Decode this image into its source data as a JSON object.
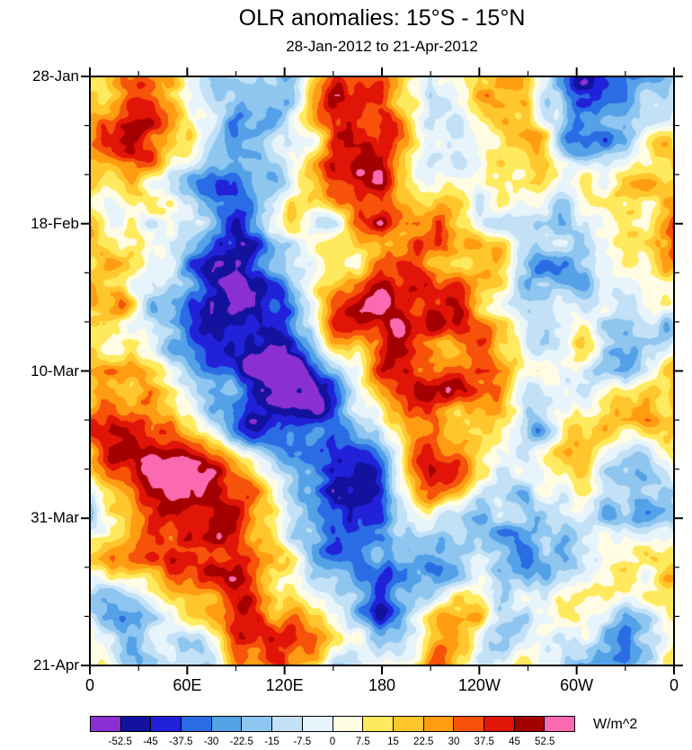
{
  "chart_data": {
    "type": "heatmap",
    "title": "OLR anomalies: 15°S - 15°N",
    "subtitle": "28-Jan-2012 to 21-Apr-2012",
    "units": "W/m^2",
    "x_axis": {
      "ticks": [
        "0",
        "60E",
        "120E",
        "180",
        "120W",
        "60W",
        "0"
      ],
      "range_deg": [
        0,
        360
      ],
      "major_tick_deg": 60,
      "minor_tick_deg": 30
    },
    "y_axis": {
      "ticks": [
        "28-Jan",
        "18-Feb",
        "10-Mar",
        "31-Mar",
        "21-Apr"
      ],
      "range_days": [
        0,
        84
      ],
      "major_tick_days": 21,
      "minor_tick_days": 7
    },
    "colorbar": {
      "levels": [
        -52.5,
        -45,
        -37.5,
        -30,
        -22.5,
        -15,
        -7.5,
        0,
        7.5,
        15,
        22.5,
        30,
        37.5,
        45,
        52.5
      ],
      "labels": [
        "-52.5",
        "-45",
        "-37.5",
        "-30",
        "-22.5",
        "-15",
        "-7.5",
        "0",
        "7.5",
        "15",
        "22.5",
        "30",
        "37.5",
        "45",
        "52.5"
      ],
      "colors": [
        "#8a2fd1",
        "#12129e",
        "#2121d9",
        "#2a6ce3",
        "#55a1e8",
        "#8fc6ef",
        "#c3e1f6",
        "#e8f4fb",
        "#fffce3",
        "#ffe95c",
        "#ffc62e",
        "#ff9c12",
        "#f6520a",
        "#e01507",
        "#a40000",
        "#fb6ab1"
      ],
      "units_label": "W/m^2"
    },
    "field": {
      "description": "Approximate OLR anomaly values (W/m^2); rows = time every 7 days from 28-Jan-2012 to 21-Apr-2012, cols = longitude every 30 deg eastward from 0",
      "lon_step_deg": 30,
      "time_step_days": 7,
      "values": [
        [
          -5,
          25,
          15,
          -10,
          -35,
          20,
          25,
          -25,
          10,
          15,
          -30,
          -40,
          -5
        ],
        [
          5,
          35,
          20,
          -20,
          -25,
          30,
          35,
          -15,
          5,
          20,
          -25,
          -30,
          5
        ],
        [
          20,
          25,
          -5,
          -30,
          -10,
          25,
          45,
          -5,
          -10,
          10,
          -20,
          -10,
          20
        ],
        [
          30,
          10,
          -15,
          -40,
          -20,
          15,
          50,
          10,
          -15,
          5,
          -25,
          -5,
          30
        ],
        [
          15,
          -5,
          -25,
          -50,
          -35,
          10,
          35,
          20,
          5,
          -10,
          -15,
          10,
          15
        ],
        [
          -5,
          -15,
          -20,
          -45,
          -55,
          5,
          20,
          25,
          15,
          -5,
          5,
          15,
          -5
        ],
        [
          25,
          10,
          -10,
          -35,
          -60,
          -25,
          30,
          15,
          20,
          10,
          10,
          -15,
          25
        ],
        [
          30,
          25,
          15,
          -20,
          -45,
          -40,
          10,
          20,
          10,
          -15,
          25,
          35,
          30
        ],
        [
          10,
          30,
          35,
          5,
          -30,
          -45,
          -15,
          25,
          -10,
          -20,
          15,
          10,
          10
        ],
        [
          -10,
          25,
          40,
          30,
          -10,
          -35,
          -30,
          10,
          -25,
          -45,
          -15,
          5,
          -10
        ],
        [
          5,
          15,
          30,
          40,
          20,
          -15,
          -40,
          -20,
          10,
          -30,
          -20,
          15,
          5
        ],
        [
          -10,
          -20,
          10,
          25,
          30,
          5,
          -25,
          15,
          20,
          -10,
          5,
          -30,
          -10
        ],
        [
          5,
          -25,
          -15,
          10,
          25,
          -15,
          20,
          30,
          -5,
          15,
          -20,
          -35,
          5
        ]
      ]
    },
    "texture": {
      "noise_amplitude": 55,
      "seed": 7
    }
  }
}
